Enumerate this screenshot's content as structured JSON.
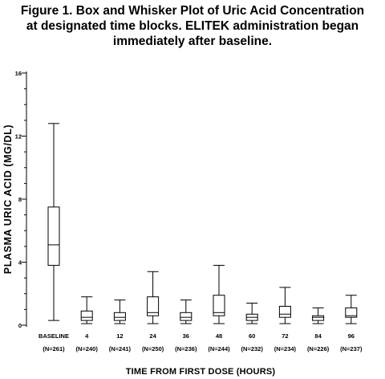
{
  "figure": {
    "title_lines": [
      "Figure 1.  Box and Whisker Plot of Uric Acid Concentration",
      "at designated time blocks. ELITEK administration began",
      "immediately after baseline."
    ]
  },
  "chart_data": {
    "type": "box",
    "title": "Figure 1.  Box and Whisker Plot of Uric Acid Concentration at designated time blocks. ELITEK administration began immediately after baseline.",
    "xlabel": "TIME FROM FIRST DOSE (HOURS)",
    "ylabel": "PLASMA URIC ACID (MG/DL)",
    "ylim": [
      0,
      16
    ],
    "yticks": [
      0,
      4,
      8,
      12,
      16
    ],
    "grid": false,
    "categories": [
      {
        "label": "BASELINE",
        "n": "(N=261)"
      },
      {
        "label": "4",
        "n": "(N=240)"
      },
      {
        "label": "12",
        "n": "(N=241)"
      },
      {
        "label": "24",
        "n": "(N=250)"
      },
      {
        "label": "36",
        "n": "(N=236)"
      },
      {
        "label": "48",
        "n": "(N=244)"
      },
      {
        "label": "60",
        "n": "(N=232)"
      },
      {
        "label": "72",
        "n": "(N=234)"
      },
      {
        "label": "84",
        "n": "(N=226)"
      },
      {
        "label": "96",
        "n": "(N=237)"
      }
    ],
    "boxes": [
      {
        "min": 0.3,
        "q1": 3.8,
        "median": 5.1,
        "q3": 7.5,
        "max": 12.8
      },
      {
        "min": 0.1,
        "q1": 0.3,
        "median": 0.5,
        "q3": 0.9,
        "max": 1.8
      },
      {
        "min": 0.1,
        "q1": 0.3,
        "median": 0.5,
        "q3": 0.8,
        "max": 1.6
      },
      {
        "min": 0.1,
        "q1": 0.6,
        "median": 0.8,
        "q3": 1.8,
        "max": 3.4
      },
      {
        "min": 0.1,
        "q1": 0.3,
        "median": 0.5,
        "q3": 0.8,
        "max": 1.6
      },
      {
        "min": 0.1,
        "q1": 0.6,
        "median": 0.8,
        "q3": 1.9,
        "max": 3.8
      },
      {
        "min": 0.1,
        "q1": 0.3,
        "median": 0.5,
        "q3": 0.7,
        "max": 1.4
      },
      {
        "min": 0.1,
        "q1": 0.5,
        "median": 0.7,
        "q3": 1.2,
        "max": 2.4
      },
      {
        "min": 0.1,
        "q1": 0.3,
        "median": 0.5,
        "q3": 0.6,
        "max": 1.1
      },
      {
        "min": 0.1,
        "q1": 0.5,
        "median": 0.6,
        "q3": 1.1,
        "max": 1.9
      }
    ]
  }
}
